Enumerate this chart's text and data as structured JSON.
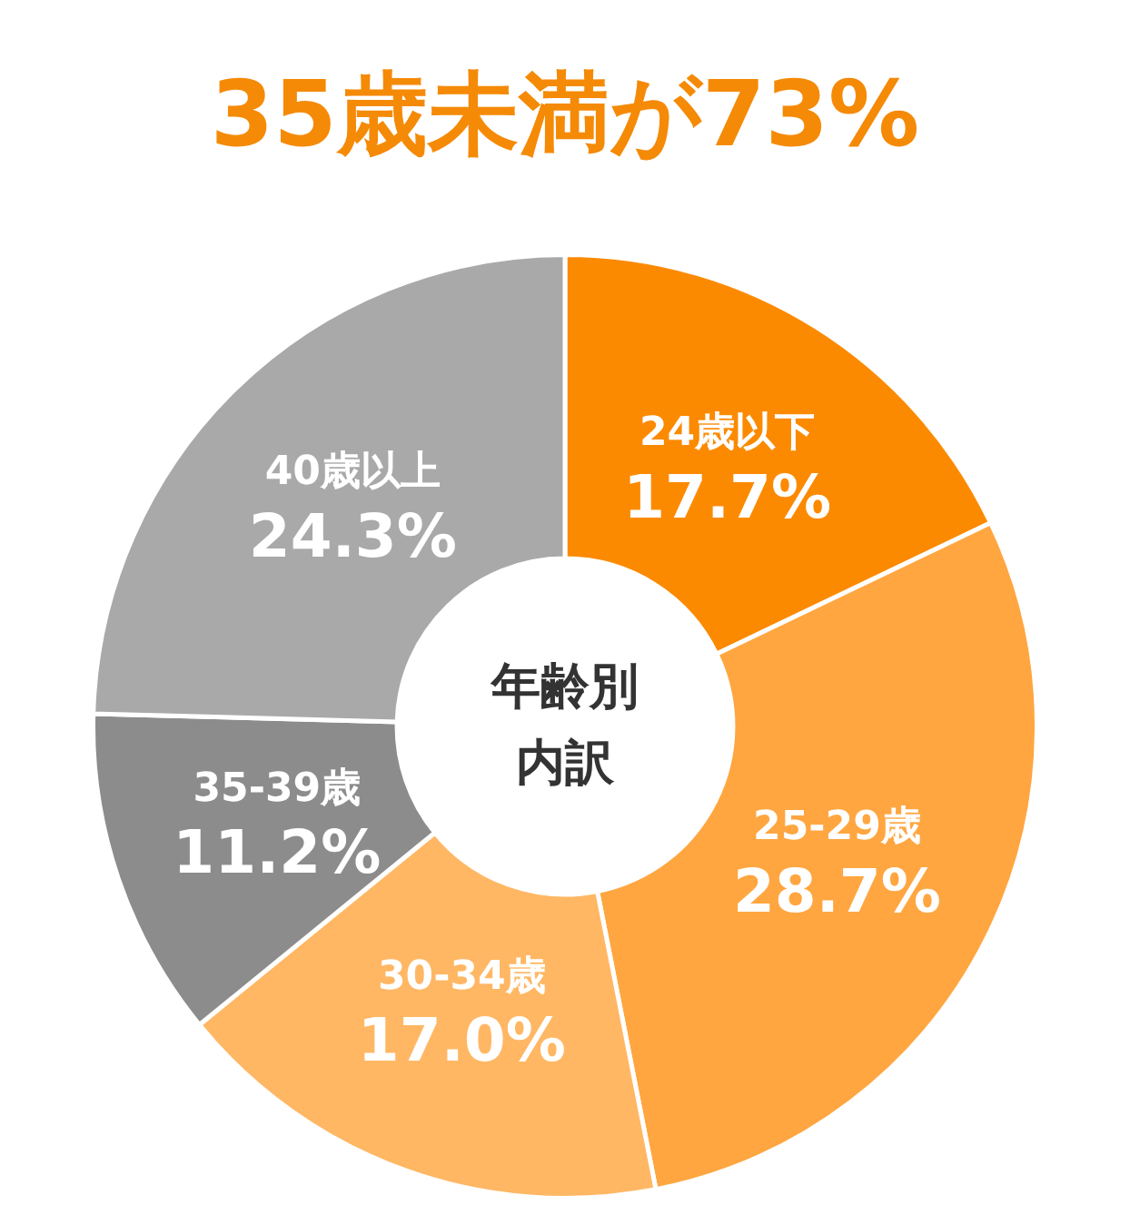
{
  "chart_data": {
    "type": "donut",
    "title": "35歳未満が73%",
    "categories": [
      "24歳以下",
      "25-29歳",
      "30-34歳",
      "35-39歳",
      "40歳以上"
    ],
    "values": [
      17.7,
      28.7,
      17.0,
      11.2,
      24.3
    ],
    "colors": [
      "#fc8a00",
      "#ffa640",
      "#ffb764",
      "#8c8c8c",
      "#a9a9a9"
    ],
    "value_labels": [
      "17.7%",
      "28.7%",
      "17.0%",
      "11.2%",
      "24.3%"
    ],
    "annotations": [
      "年齢別内訳"
    ]
  }
}
